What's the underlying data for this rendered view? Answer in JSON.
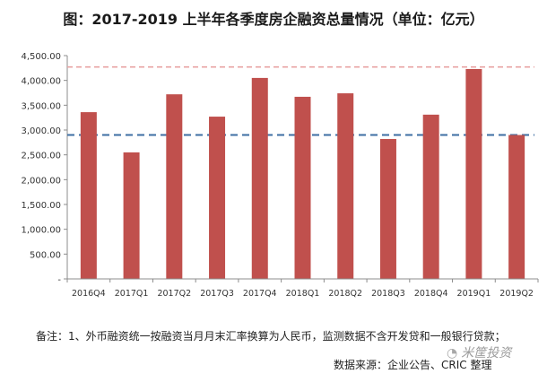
{
  "chart_data": {
    "type": "bar",
    "title": "图：2017-2019 上半年各季度房企融资总量情况（单位：亿元）",
    "categories": [
      "2016Q4",
      "2017Q1",
      "2017Q2",
      "2017Q3",
      "2017Q4",
      "2018Q1",
      "2018Q2",
      "2018Q3",
      "2018Q4",
      "2019Q1",
      "2019Q2"
    ],
    "values": [
      3360,
      2550,
      3720,
      3270,
      4050,
      3670,
      3740,
      2820,
      3310,
      4230,
      2900
    ],
    "y_ticks": [
      0,
      500,
      1000,
      1500,
      2000,
      2500,
      3000,
      3500,
      4000,
      4500
    ],
    "y_tick_labels": [
      "-",
      "500.00",
      "1,000.00",
      "1,500.00",
      "2,000.00",
      "2,500.00",
      "3,000.00",
      "3,500.00",
      "4,000.00",
      "4,500.00"
    ],
    "ylim": [
      0,
      4500
    ],
    "xlabel": "",
    "ylabel": "",
    "reference_lines": [
      {
        "value": 4270,
        "color": "#e8a3a3",
        "style": "dashed"
      },
      {
        "value": 2900,
        "color": "#3d6ea3",
        "style": "dashed"
      }
    ],
    "bar_color": "#c0504d",
    "grid": false
  },
  "footer": {
    "note": "备注：1、外币融资统一按融资当月月末汇率换算为人民币，监测数据不含开发贷和一般银行贷款；",
    "source": "数据来源：企业公告、CRIC 整理",
    "watermark": "米筐投资",
    "watermark_icon": "logo-icon"
  }
}
